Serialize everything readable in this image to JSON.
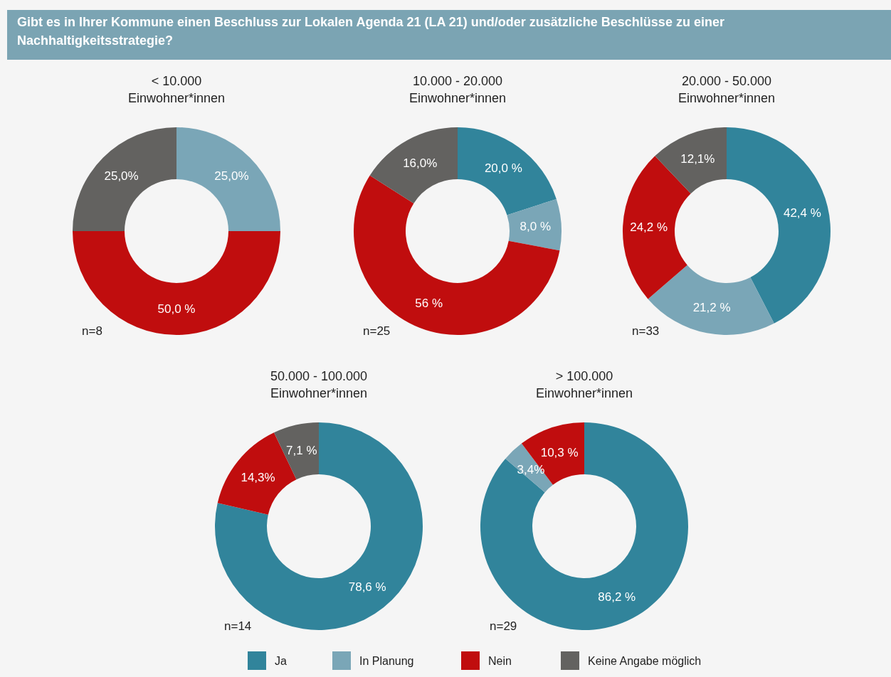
{
  "chart_data": [
    {
      "type": "donut",
      "title": "Gibt es in Ihrer Kommune einen Beschluss zur Lokalen Agenda 21 (LA 21) und/oder zusätzliche Beschlüsse zu einer Nachhaltigkeitsstrategie?",
      "subtitle": "< 10.000 Einwohner*innen",
      "categories": [
        "Ja",
        "In Planung",
        "Nein",
        "Keine Angabe möglich"
      ],
      "values": [
        0,
        25,
        50,
        25
      ],
      "value_labels": [
        null,
        "25,0%",
        "50,0 %",
        "25,0%"
      ],
      "colors": [
        "#31849b",
        "#7aa6b7",
        "#c00d0e",
        "#636260"
      ],
      "annotations": [
        "n=8"
      ],
      "legend": "bottom"
    },
    {
      "type": "donut",
      "subtitle": "10.000 - 20.000 Einwohner*innen",
      "categories": [
        null,
        null,
        null,
        null
      ],
      "values": [
        20,
        8,
        56,
        16
      ],
      "value_labels": [
        "20,0 %",
        "8,0 %",
        "56 %",
        "16,0%"
      ],
      "colors": [
        "#31849b",
        "#7aa6b7",
        "#c00d0e",
        "#636260"
      ],
      "annotations": [
        "n=25"
      ]
    },
    {
      "type": "donut",
      "subtitle": "20.000 - 50.000 Einwohner*innen",
      "categories": [
        null,
        null,
        null,
        null
      ],
      "values": [
        42.4,
        21.2,
        24.2,
        12.1
      ],
      "value_labels": [
        "42,4 %",
        "21,2 %",
        "24,2 %",
        "12,1%"
      ],
      "colors": [
        "#31849b",
        "#7aa6b7",
        "#c00d0e",
        "#636260"
      ],
      "annotations": [
        "n=33"
      ]
    },
    {
      "type": "donut",
      "subtitle": "50.000 - 100.000 Einwohner*innen",
      "categories": [
        null,
        null,
        null,
        null
      ],
      "values": [
        78.6,
        0,
        14.3,
        7.1
      ],
      "value_labels": [
        "78,6 %",
        null,
        "14,3%",
        "7,1 %"
      ],
      "colors": [
        "#31849b",
        "#7aa6b7",
        "#c00d0e",
        "#636260"
      ],
      "annotations": [
        "n=14"
      ]
    },
    {
      "type": "donut",
      "subtitle": "> 100.000 Einwohner*innen",
      "categories": [
        null,
        null,
        null,
        null
      ],
      "values": [
        86.2,
        3.4,
        10.3,
        0
      ],
      "value_labels": [
        "86,2 %",
        "3,4%",
        "10,3 %",
        null
      ],
      "colors": [
        "#31849b",
        "#7aa6b7",
        "#c00d0e",
        "#636260"
      ],
      "annotations": [
        "n=29"
      ]
    }
  ]
}
